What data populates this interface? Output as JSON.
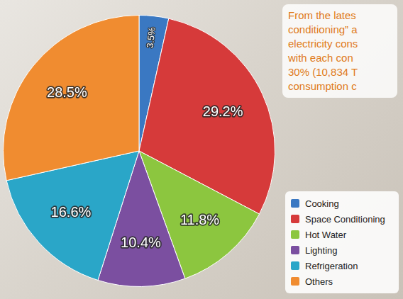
{
  "chart_data": {
    "type": "pie",
    "categories": [
      "Cooking",
      "Space Conditioning",
      "Hot Water",
      "Lighting",
      "Refrigeration",
      "Others"
    ],
    "values": [
      3.5,
      29.2,
      11.8,
      10.4,
      16.6,
      28.5
    ],
    "value_labels": [
      "3.5%",
      "29.2%",
      "11.8%",
      "10.4%",
      "16.6%",
      "28.5%"
    ],
    "colors": [
      "#3a78c2",
      "#d63a3a",
      "#8cc63f",
      "#7b4fa0",
      "#2aa6c8",
      "#f08c30"
    ],
    "data_labels": true,
    "legend": "bottom right",
    "annotations": [
      "From the lates",
      "conditioning” a",
      "electricity cons",
      "with each con",
      "30% (10,834 T",
      "consumption c"
    ]
  }
}
